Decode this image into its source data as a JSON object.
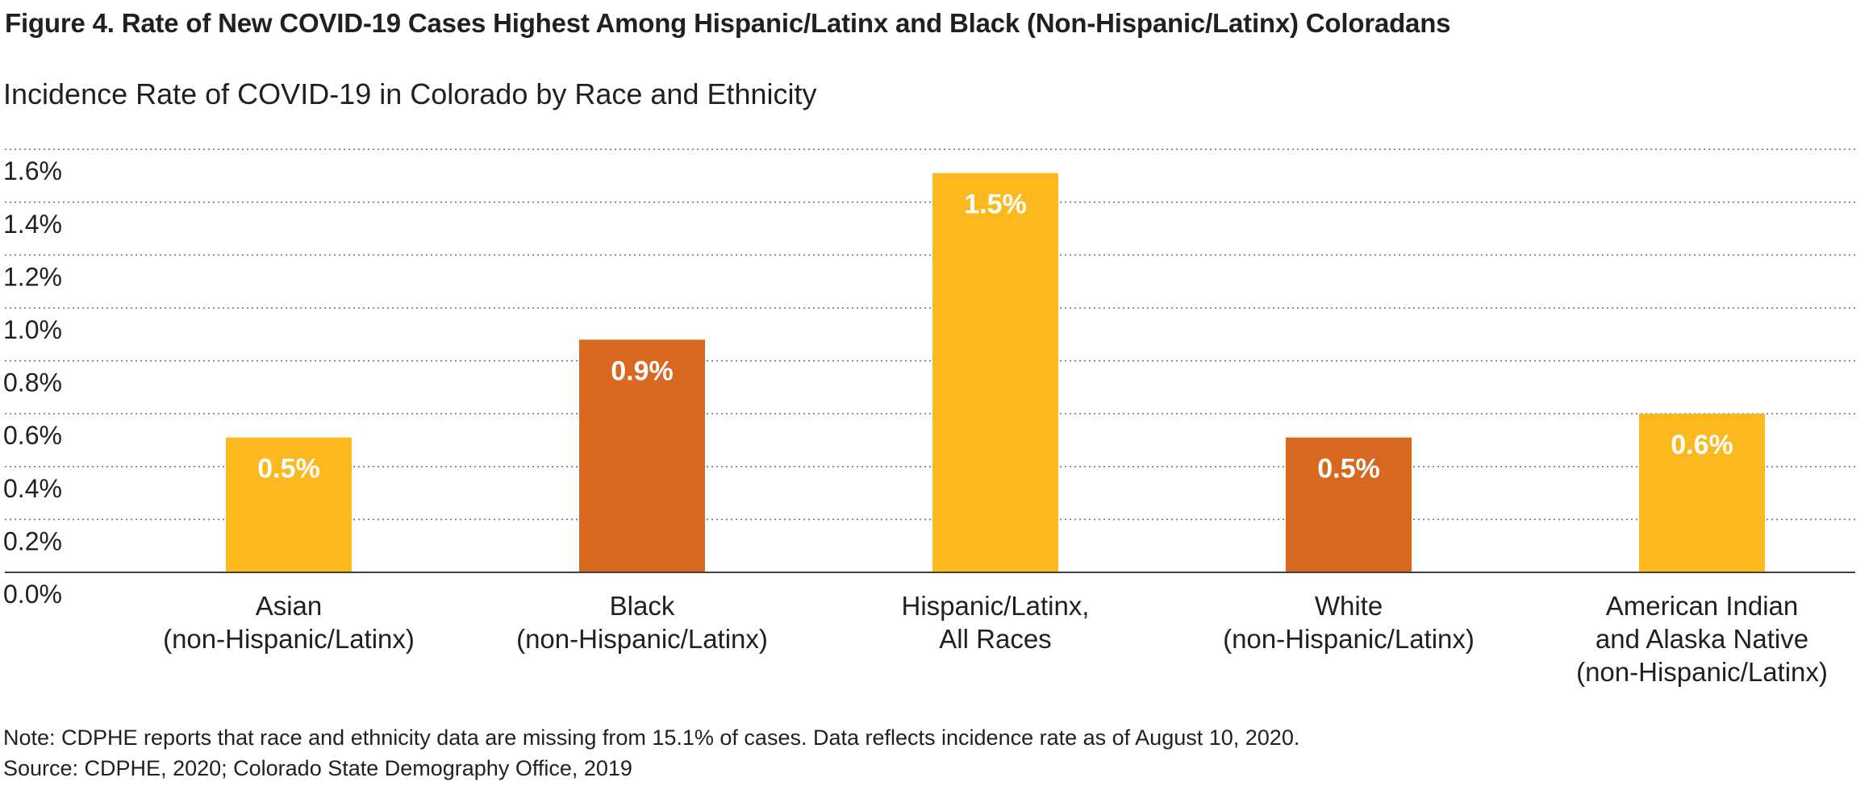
{
  "title": "Figure 4. Rate of New COVID-19 Cases Highest Among Hispanic/Latinx and Black (Non-Hispanic/Latinx) Coloradans",
  "subtitle": "Incidence Rate of COVID-19 in Colorado by Race and Ethnicity",
  "note": "Note: CDPHE reports that race and ethnicity data are missing from 15.1% of cases. Data reflects incidence rate as of August 10, 2020.",
  "source": "Source: CDPHE, 2020; Colorado State Demography Office, 2019",
  "chart_data": {
    "type": "bar",
    "categories": [
      [
        "Asian",
        "(non-Hispanic/Latinx)"
      ],
      [
        "Black",
        "(non-Hispanic/Latinx)"
      ],
      [
        "Hispanic/Latinx,",
        "All Races"
      ],
      [
        "White",
        "(non-Hispanic/Latinx)"
      ],
      [
        "American Indian",
        "and Alaska Native",
        "(non-Hispanic/Latinx)"
      ]
    ],
    "values": [
      0.5,
      0.9,
      1.5,
      0.5,
      0.6
    ],
    "bar_values": [
      0.51,
      0.88,
      1.51,
      0.51,
      0.6
    ],
    "data_labels": [
      "0.5%",
      "0.9%",
      "1.5%",
      "0.5%",
      "0.6%"
    ],
    "bar_colors": [
      "#fbb91e",
      "#d8671f",
      "#fbb91e",
      "#d8671f",
      "#fbb91e"
    ],
    "yticks": [
      0.0,
      0.2,
      0.4,
      0.6,
      0.8,
      1.0,
      1.2,
      1.4,
      1.6
    ],
    "ytick_labels": [
      "0.0%",
      "0.2%",
      "0.4%",
      "0.6%",
      "0.8%",
      "1.0%",
      "1.2%",
      "1.4%",
      "1.6%"
    ],
    "ylim": [
      0,
      1.6
    ],
    "grid": true,
    "legend": false
  }
}
